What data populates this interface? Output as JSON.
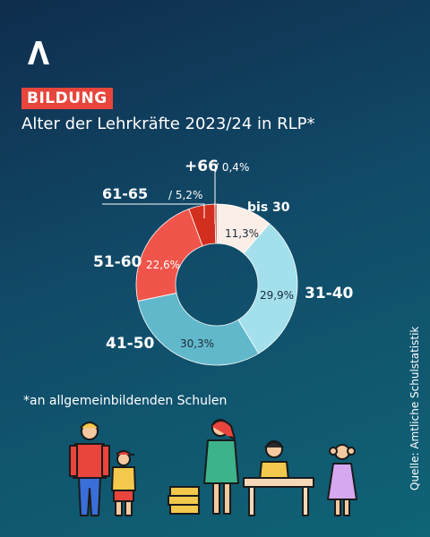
{
  "header": {
    "logo_icon": "brand-a-logo-icon",
    "badge": "BILDUNG",
    "title": "Alter der Lehrkräfte 2023/24 in RLP*"
  },
  "chart_data": {
    "type": "pie",
    "variant": "donut",
    "categories": [
      "bis 30",
      "31-40",
      "41-50",
      "51-60",
      "61-65",
      "+66"
    ],
    "values": [
      11.3,
      29.9,
      30.3,
      22.6,
      5.2,
      0.4
    ],
    "value_labels": [
      "11,3%",
      "29,9%",
      "30,3%",
      "22,6%",
      "5,2%",
      "0,4%"
    ],
    "colors": [
      "#fbeee6",
      "#a3e0ec",
      "#62b8cb",
      "#f0544a",
      "#d32f1f",
      "#a82014"
    ],
    "legend": "labels-outside"
  },
  "footnote": "*an allgemeinbildenden Schulen",
  "source": "Quelle: Amtliche Schulstatistik",
  "illustration": {
    "icon": "people-illustration-icon"
  }
}
